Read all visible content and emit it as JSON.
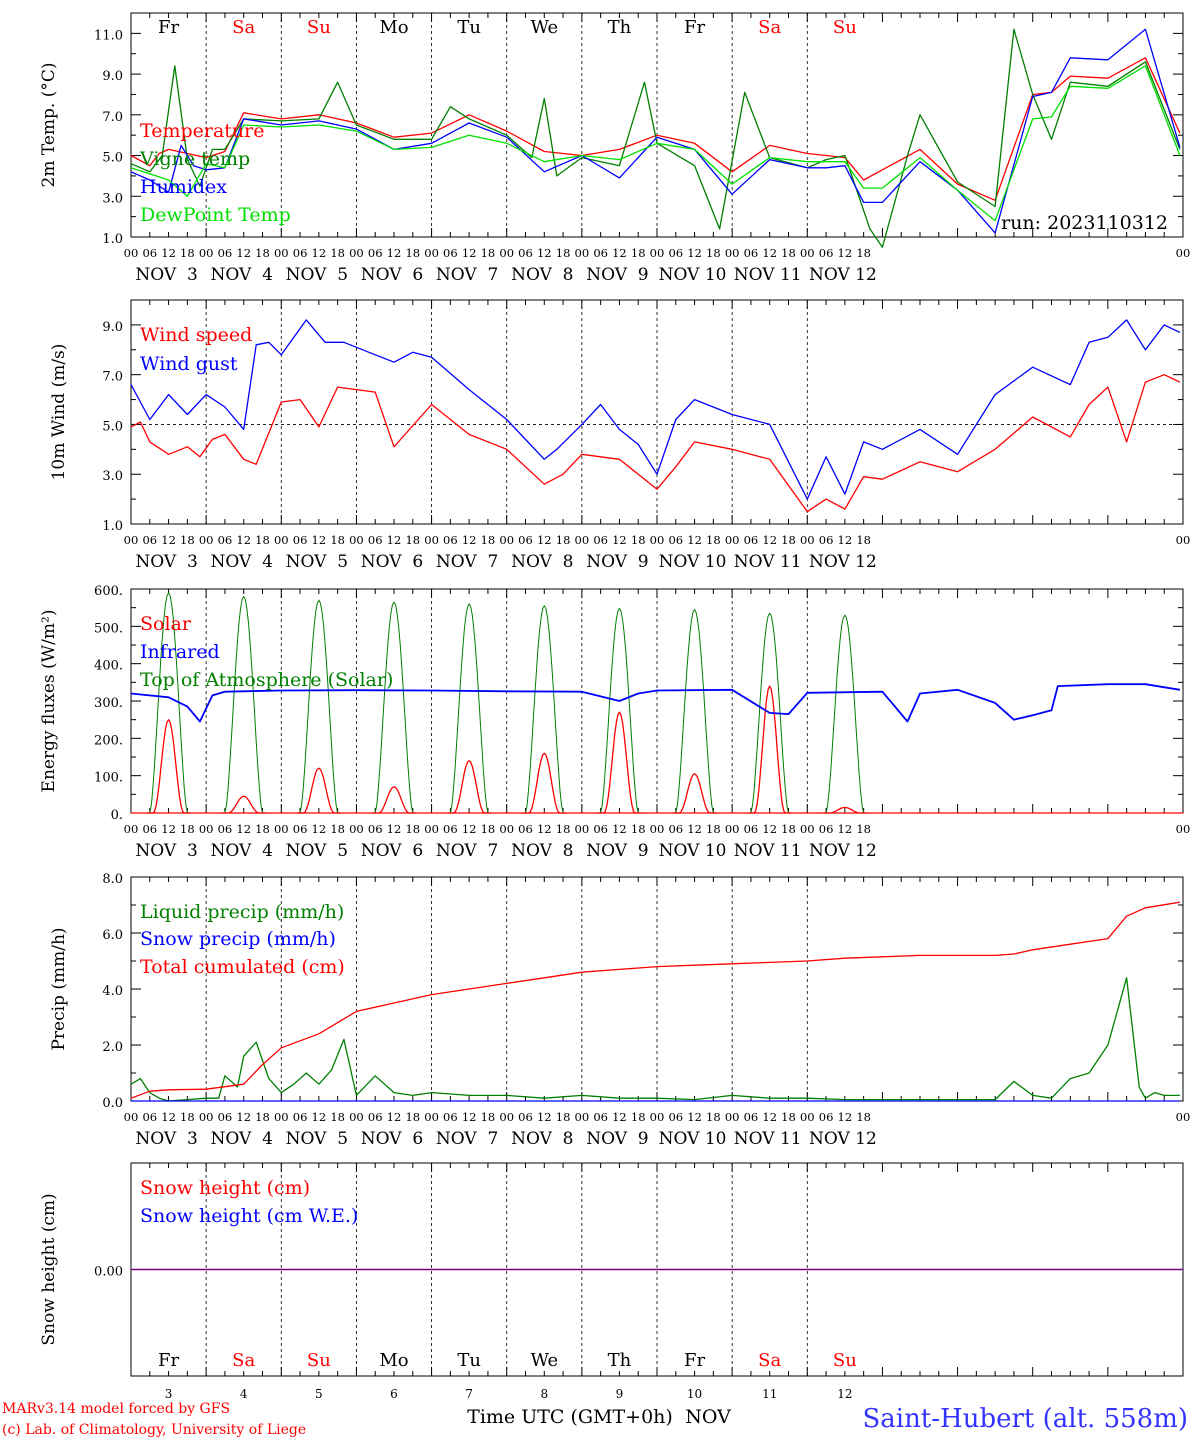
{
  "colors": {
    "red": "#ff0000",
    "blue": "#0000ff",
    "green": "#007f00",
    "lightgreen": "#00e000",
    "purple": "#7f007f",
    "station_blue": "#3333ff",
    "weekday": "#000000",
    "weekend": "#ff0000"
  },
  "days": [
    {
      "name": "Fr",
      "date": "NOV  3",
      "num": "3",
      "weekend": false
    },
    {
      "name": "Sa",
      "date": "NOV  4",
      "num": "4",
      "weekend": true
    },
    {
      "name": "Su",
      "date": "NOV  5",
      "num": "5",
      "weekend": true
    },
    {
      "name": "Mo",
      "date": "NOV  6",
      "num": "6",
      "weekend": false
    },
    {
      "name": "Tu",
      "date": "NOV  7",
      "num": "7",
      "weekend": false
    },
    {
      "name": "We",
      "date": "NOV  8",
      "num": "8",
      "weekend": false
    },
    {
      "name": "Th",
      "date": "NOV  9",
      "num": "9",
      "weekend": false
    },
    {
      "name": "Fr",
      "date": "NOV 10",
      "num": "10",
      "weekend": false
    },
    {
      "name": "Sa",
      "date": "NOV 11",
      "num": "11",
      "weekend": true
    },
    {
      "name": "Su",
      "date": "NOV 12",
      "num": "12",
      "weekend": true
    }
  ],
  "hour_labels": [
    "00",
    "06",
    "12",
    "18"
  ],
  "final_hour_label": "00",
  "run_label": "run: 2023110312",
  "footer": {
    "credit1": "MARv3.14 model forced by GFS",
    "credit2": "(c) Lab. of Climatology, University of Liege",
    "time_label": "Time UTC (GMT+0h)",
    "month": "NOV",
    "station": "Saint-Hubert (alt. 558m)"
  },
  "chart_data": [
    {
      "type": "line",
      "ylabel": "2m Temp. (°C)",
      "ylim": [
        1.0,
        12.0
      ],
      "yticks": [
        1.0,
        3.0,
        5.0,
        7.0,
        9.0,
        11.0
      ],
      "ytick_labels": [
        "1.0",
        "3.0",
        "5.0",
        "7.0",
        "9.0",
        "11.0"
      ],
      "x_unit": "hours since 2023-11-03 00 UTC",
      "series": [
        {
          "name": "Temperature",
          "color": "red",
          "x": [
            0,
            6,
            9,
            12,
            18,
            24,
            30,
            36,
            48,
            60,
            72,
            84,
            96,
            108,
            120,
            132,
            144,
            156,
            168,
            180,
            192,
            204,
            216,
            222,
            228,
            234,
            240,
            252,
            264,
            276,
            288,
            294,
            300,
            312,
            324,
            335
          ],
          "y": [
            5.0,
            4.5,
            5.1,
            5.3,
            5.1,
            4.9,
            5.2,
            7.1,
            6.8,
            7.0,
            6.6,
            5.9,
            6.1,
            7.0,
            6.2,
            5.2,
            5.0,
            5.3,
            6.0,
            5.6,
            4.2,
            5.5,
            5.1,
            5.0,
            4.9,
            3.8,
            4.3,
            5.3,
            3.6,
            2.8,
            8.0,
            8.1,
            8.9,
            8.8,
            9.8,
            6.1
          ]
        },
        {
          "name": "Vigne temp",
          "color": "green",
          "x": [
            0,
            6,
            10,
            14,
            18,
            22,
            26,
            30,
            36,
            48,
            60,
            66,
            72,
            84,
            96,
            102,
            108,
            120,
            128,
            132,
            136,
            144,
            156,
            164,
            168,
            180,
            188,
            196,
            204,
            216,
            222,
            228,
            236,
            240,
            248,
            252,
            264,
            276,
            282,
            288,
            294,
            300,
            312,
            324,
            335
          ],
          "y": [
            4.6,
            4.2,
            5.0,
            9.4,
            4.8,
            3.5,
            5.3,
            5.3,
            6.8,
            6.7,
            6.8,
            8.6,
            6.5,
            5.8,
            5.8,
            7.4,
            6.8,
            6.0,
            4.9,
            7.8,
            4.0,
            4.9,
            4.5,
            8.6,
            5.6,
            4.5,
            1.4,
            8.1,
            4.9,
            4.4,
            4.8,
            5.0,
            1.4,
            0.5,
            5.0,
            7.0,
            3.7,
            2.5,
            11.2,
            8.0,
            5.8,
            8.6,
            8.4,
            9.6,
            5.3
          ]
        },
        {
          "name": "Humidex",
          "color": "blue",
          "x": [
            0,
            6,
            12,
            16,
            20,
            24,
            30,
            36,
            48,
            60,
            72,
            84,
            96,
            108,
            120,
            132,
            144,
            156,
            168,
            180,
            192,
            204,
            216,
            222,
            228,
            234,
            240,
            252,
            264,
            276,
            288,
            294,
            300,
            312,
            324,
            335
          ],
          "y": [
            4.2,
            3.8,
            3.2,
            5.5,
            4.5,
            4.3,
            4.4,
            6.8,
            6.5,
            6.7,
            6.3,
            5.3,
            5.6,
            6.6,
            5.9,
            4.2,
            5.0,
            3.9,
            5.9,
            5.3,
            3.1,
            4.8,
            4.4,
            4.4,
            4.5,
            2.7,
            2.7,
            4.7,
            3.3,
            1.2,
            7.9,
            8.1,
            9.8,
            9.7,
            11.2,
            5.4
          ]
        },
        {
          "name": "DewPoint Temp",
          "color": "lightgreen",
          "x": [
            0,
            6,
            12,
            18,
            24,
            30,
            36,
            48,
            60,
            72,
            84,
            96,
            108,
            120,
            132,
            144,
            156,
            168,
            180,
            192,
            204,
            216,
            228,
            234,
            240,
            252,
            264,
            276,
            288,
            294,
            300,
            312,
            324,
            335
          ],
          "y": [
            4.4,
            4.1,
            3.8,
            3.0,
            4.6,
            4.4,
            6.5,
            6.4,
            6.5,
            6.2,
            5.3,
            5.4,
            6.0,
            5.6,
            4.7,
            5.0,
            4.8,
            5.6,
            5.3,
            3.6,
            4.9,
            4.7,
            4.7,
            3.4,
            3.4,
            4.9,
            3.3,
            1.8,
            6.8,
            6.9,
            8.4,
            8.3,
            9.4,
            5.0
          ]
        }
      ]
    },
    {
      "type": "line",
      "ylabel": "10m Wind (m/s)",
      "ylim": [
        1.0,
        10.0
      ],
      "yticks": [
        1.0,
        3.0,
        5.0,
        7.0,
        9.0
      ],
      "ytick_labels": [
        "1.0",
        "3.0",
        "5.0",
        "7.0",
        "9.0"
      ],
      "reference_line": 5.0,
      "series": [
        {
          "name": "Wind speed",
          "color": "red",
          "x": [
            0,
            3,
            6,
            12,
            18,
            22,
            26,
            30,
            36,
            40,
            48,
            54,
            60,
            66,
            72,
            78,
            84,
            96,
            108,
            120,
            132,
            138,
            144,
            150,
            156,
            168,
            174,
            180,
            192,
            204,
            216,
            222,
            228,
            234,
            240,
            252,
            264,
            276,
            288,
            300,
            306,
            312,
            318,
            324,
            330,
            335
          ],
          "y": [
            4.9,
            5.1,
            4.3,
            3.8,
            4.1,
            3.7,
            4.4,
            4.6,
            3.6,
            3.4,
            5.9,
            6.0,
            4.9,
            6.5,
            6.4,
            6.3,
            4.1,
            5.8,
            4.6,
            4.0,
            2.6,
            3.0,
            3.8,
            3.7,
            3.6,
            2.4,
            3.3,
            4.3,
            4.0,
            3.6,
            1.5,
            2.0,
            1.6,
            2.9,
            2.8,
            3.5,
            3.1,
            4.0,
            5.3,
            4.5,
            5.8,
            6.5,
            4.3,
            6.7,
            7.0,
            6.7
          ]
        },
        {
          "name": "Wind gust",
          "color": "blue",
          "x": [
            0,
            6,
            12,
            18,
            24,
            30,
            36,
            40,
            44,
            48,
            56,
            62,
            68,
            78,
            84,
            90,
            96,
            108,
            120,
            132,
            136,
            144,
            150,
            156,
            162,
            168,
            174,
            180,
            192,
            204,
            216,
            222,
            228,
            234,
            240,
            252,
            264,
            276,
            288,
            300,
            306,
            312,
            318,
            324,
            330,
            335
          ],
          "y": [
            6.6,
            5.2,
            6.2,
            5.4,
            6.2,
            5.7,
            4.8,
            8.2,
            8.3,
            7.8,
            9.2,
            8.3,
            8.3,
            7.8,
            7.5,
            7.9,
            7.7,
            6.4,
            5.2,
            3.6,
            4.0,
            5.0,
            5.8,
            4.8,
            4.2,
            3.0,
            5.2,
            6.0,
            5.4,
            5.0,
            2.0,
            3.7,
            2.2,
            4.3,
            4.0,
            4.8,
            3.8,
            6.2,
            7.3,
            6.6,
            8.3,
            8.5,
            9.2,
            8.0,
            9.0,
            8.7
          ]
        }
      ]
    },
    {
      "type": "line",
      "ylabel": "Energy fluxes (W/m²)",
      "ylim": [
        0,
        600
      ],
      "yticks": [
        0,
        100,
        200,
        300,
        400,
        500,
        600
      ],
      "ytick_labels": [
        "0.",
        "100.",
        "200.",
        "300.",
        "400.",
        "500.",
        "600."
      ],
      "solar_peaks": [
        250,
        45,
        120,
        70,
        140,
        160,
        270,
        105,
        340,
        15
      ],
      "toa_peaks": [
        590,
        580,
        570,
        565,
        560,
        555,
        548,
        545,
        535,
        530
      ],
      "series": [
        {
          "name": "Solar",
          "color": "red",
          "x": "derived from solar_peaks (daylight 07–17 UTC each day)"
        },
        {
          "name": "Infrared",
          "color": "blue",
          "x": [
            0,
            12,
            18,
            22,
            26,
            30,
            48,
            72,
            96,
            120,
            144,
            156,
            162,
            168,
            192,
            204,
            210,
            216,
            240,
            248,
            252,
            264,
            276,
            282,
            288,
            294,
            296,
            312,
            324,
            335
          ],
          "y": [
            320,
            310,
            285,
            245,
            315,
            325,
            328,
            329,
            328,
            326,
            325,
            300,
            320,
            328,
            330,
            268,
            265,
            322,
            325,
            245,
            320,
            330,
            295,
            250,
            262,
            275,
            340,
            345,
            345,
            330
          ]
        },
        {
          "name": "Top of Atmosphere (Solar)",
          "color": "green"
        }
      ]
    },
    {
      "type": "line",
      "ylabel": "Precip (mm/h)",
      "ylim": [
        0,
        8.0
      ],
      "yticks": [
        0,
        2.0,
        4.0,
        6.0,
        8.0
      ],
      "ytick_labels": [
        "0.0",
        "2.0",
        "4.0",
        "6.0",
        "8.0"
      ],
      "series": [
        {
          "name": "Liquid precip (mm/h)",
          "color": "green",
          "x": [
            0,
            3,
            6,
            9,
            12,
            18,
            24,
            28,
            30,
            34,
            36,
            40,
            44,
            48,
            52,
            56,
            60,
            64,
            68,
            72,
            78,
            84,
            90,
            96,
            108,
            120,
            132,
            144,
            156,
            168,
            180,
            192,
            204,
            216,
            228,
            240,
            252,
            264,
            276,
            282,
            288,
            294,
            300,
            306,
            312,
            318,
            322,
            324,
            327,
            330,
            335
          ],
          "y": [
            0.6,
            0.8,
            0.3,
            0.1,
            0.0,
            0.05,
            0.1,
            0.1,
            0.9,
            0.5,
            1.6,
            2.1,
            0.8,
            0.3,
            0.6,
            1.0,
            0.6,
            1.1,
            2.2,
            0.2,
            0.9,
            0.3,
            0.2,
            0.3,
            0.2,
            0.2,
            0.1,
            0.2,
            0.1,
            0.1,
            0.05,
            0.2,
            0.1,
            0.1,
            0.05,
            0.05,
            0.05,
            0.05,
            0.05,
            0.7,
            0.2,
            0.1,
            0.8,
            1.0,
            2.0,
            4.4,
            0.5,
            0.1,
            0.3,
            0.2,
            0.2
          ]
        },
        {
          "name": "Snow precip (mm/h)",
          "color": "blue",
          "x": [
            0,
            335
          ],
          "y": [
            0,
            0
          ]
        },
        {
          "name": "Total cumulated (cm)",
          "color": "red",
          "x": [
            0,
            6,
            12,
            24,
            36,
            42,
            48,
            60,
            72,
            84,
            96,
            108,
            120,
            132,
            144,
            156,
            168,
            180,
            192,
            204,
            216,
            228,
            240,
            252,
            264,
            276,
            282,
            288,
            300,
            312,
            318,
            324,
            335
          ],
          "y": [
            0.1,
            0.35,
            0.4,
            0.42,
            0.6,
            1.3,
            1.9,
            2.4,
            3.2,
            3.5,
            3.8,
            4.0,
            4.2,
            4.4,
            4.6,
            4.7,
            4.8,
            4.85,
            4.9,
            4.95,
            5.0,
            5.1,
            5.15,
            5.2,
            5.2,
            5.2,
            5.25,
            5.4,
            5.6,
            5.8,
            6.6,
            6.9,
            7.1
          ]
        }
      ]
    },
    {
      "type": "line",
      "ylabel": "Snow height (cm)",
      "ylim": [
        -1,
        1
      ],
      "yticks": [
        0
      ],
      "ytick_labels": [
        "0.00"
      ],
      "series": [
        {
          "name": "Snow height (cm)",
          "color": "red",
          "x": [
            0,
            336
          ],
          "y": [
            0,
            0
          ]
        },
        {
          "name": "Snow height (cm W.E.)",
          "color": "blue",
          "x": [
            0,
            336
          ],
          "y": [
            0,
            0
          ]
        }
      ]
    }
  ]
}
